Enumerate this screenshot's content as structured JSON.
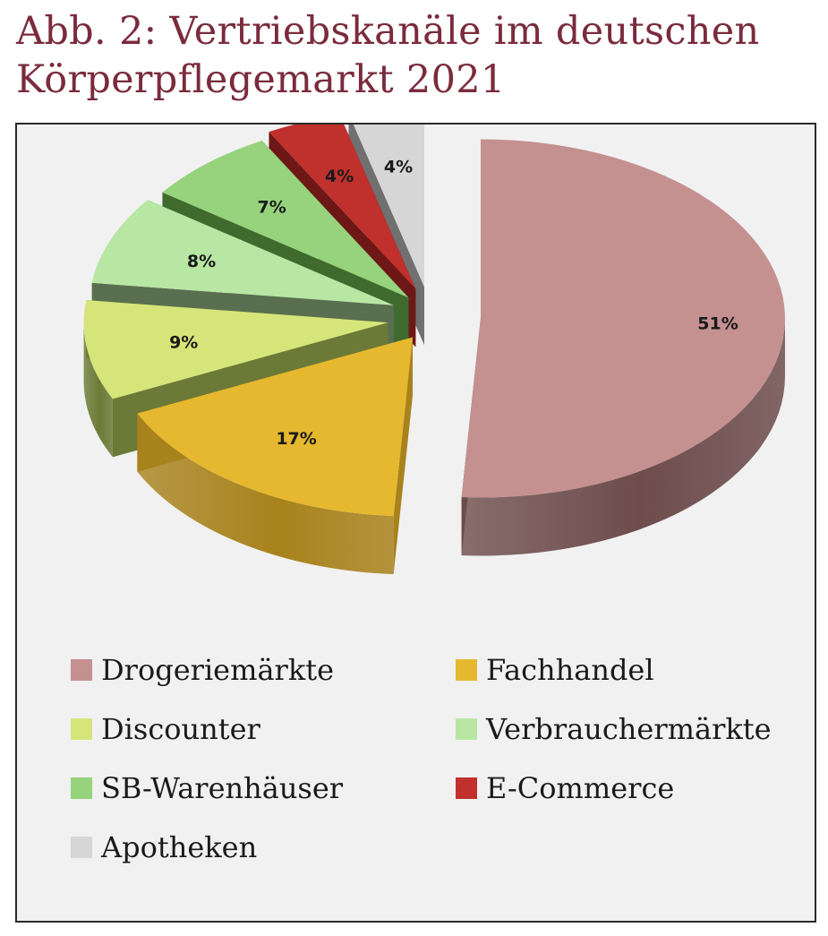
{
  "header": {
    "title_line1": "Abb. 2: Vertriebskanäle im deutschen",
    "title_line2": "Körperpflegemarkt 2021"
  },
  "chart_data": {
    "type": "pie",
    "title": "Abb. 2: Vertriebskanäle im deutschen Körperpflegemarkt 2021",
    "categories": [
      "Drogeriemärkte",
      "Fachhandel",
      "Discounter",
      "Verbrauchermärkte",
      "SB-Warenhäuser",
      "E-Commerce",
      "Apotheken"
    ],
    "values": [
      51,
      17,
      9,
      8,
      7,
      4,
      4
    ],
    "value_labels": [
      "51%",
      "17%",
      "9%",
      "8%",
      "7%",
      "4%",
      "4%"
    ],
    "colors": [
      "#c49090",
      "#e6b82f",
      "#d6e57a",
      "#b8e7a4",
      "#96d37c",
      "#c0302c",
      "#d6d6d6"
    ],
    "side_colors": [
      "#6e4c4c",
      "#a8821c",
      "#6b7a36",
      "#5a6e50",
      "#3f6b2e",
      "#6d1816",
      "#707070"
    ],
    "legend_position": "bottom",
    "exploded": true
  }
}
